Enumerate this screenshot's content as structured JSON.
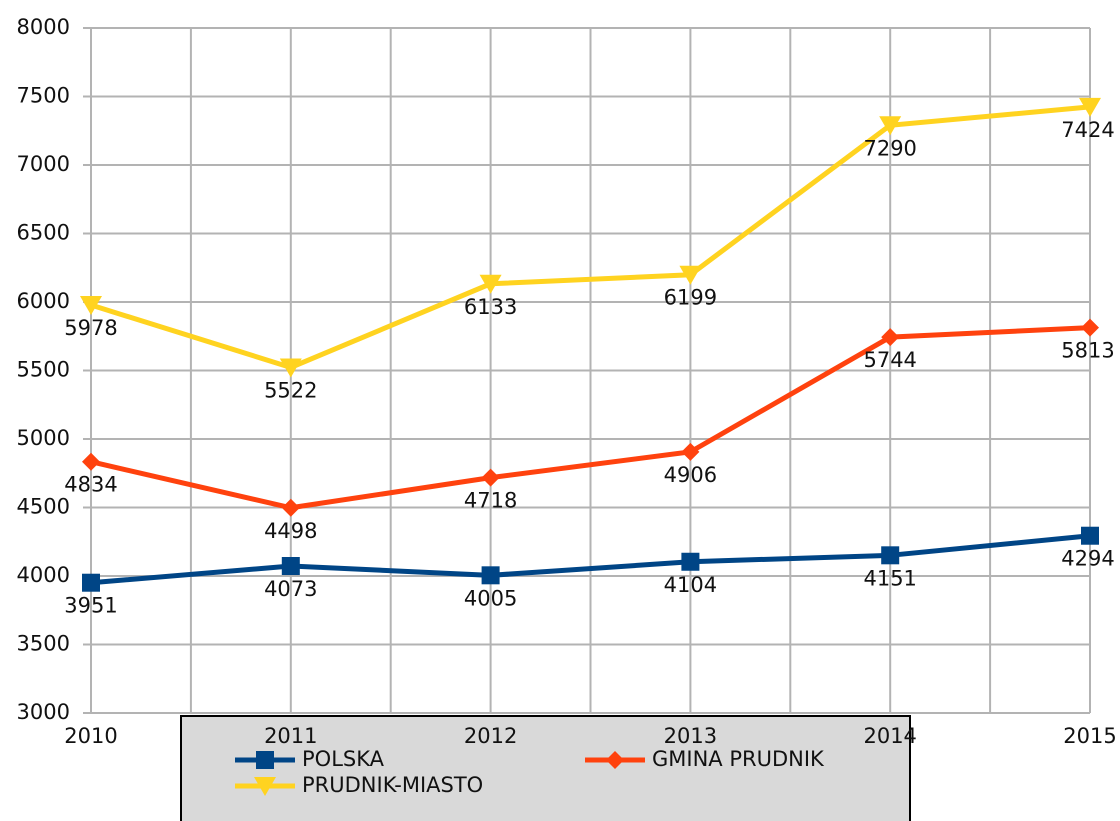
{
  "chart_data": {
    "type": "line",
    "categories": [
      "2010",
      "2011",
      "2012",
      "2013",
      "2014",
      "2015"
    ],
    "series": [
      {
        "name": "POLSKA",
        "color": "#004586",
        "marker": "square",
        "values": [
          3951,
          4073,
          4005,
          4104,
          4151,
          4294
        ]
      },
      {
        "name": "GMINA PRUDNIK",
        "color": "#ff420e",
        "marker": "diamond",
        "values": [
          4834,
          4498,
          4718,
          4906,
          5744,
          5813
        ]
      },
      {
        "name": "PRUDNIK-MIASTO",
        "color": "#ffd320",
        "marker": "triangle-down",
        "values": [
          5978,
          5522,
          6133,
          6199,
          7290,
          7424
        ]
      }
    ],
    "ylim": [
      3000,
      8000
    ],
    "yticks": [
      3000,
      3500,
      4000,
      4500,
      5000,
      5500,
      6000,
      6500,
      7000,
      7500,
      8000
    ],
    "grid": true,
    "legend": "bottom"
  }
}
